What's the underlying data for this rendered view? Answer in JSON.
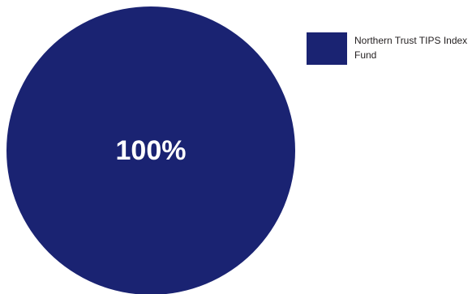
{
  "chart_data": {
    "type": "pie",
    "categories": [
      "Northern Trust TIPS Index Fund"
    ],
    "values": [
      100
    ],
    "data_labels": [
      "100%"
    ],
    "colors": [
      "#1a2372"
    ],
    "legend_position": "right-top"
  }
}
